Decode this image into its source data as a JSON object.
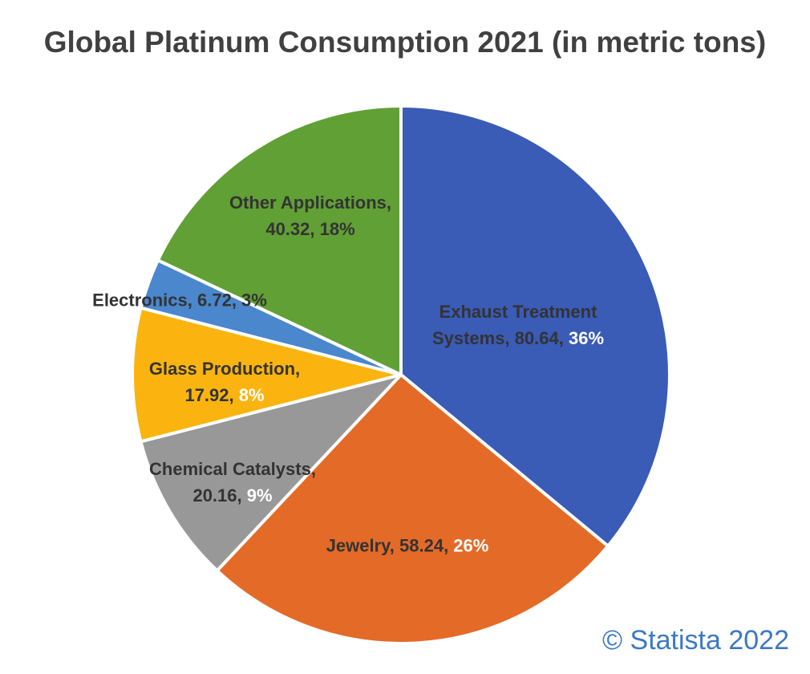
{
  "chart_data": {
    "type": "pie",
    "title": "Global Platinum Consumption 2021 (in metric tons)",
    "start_angle_deg": -90,
    "direction": "clockwise",
    "slices": [
      {
        "label": "Exhaust Treatment Systems",
        "value": 80.64,
        "value_text": "80.64",
        "percent": "36%",
        "color": "#3a5bb6",
        "percent_color": "#ffffff"
      },
      {
        "label": "Jewelry",
        "value": 58.24,
        "value_text": "58.24",
        "percent": "26%",
        "color": "#e46a27",
        "percent_color": "#ffffff"
      },
      {
        "label": "Chemical Catalysts",
        "value": 20.16,
        "value_text": "20.16",
        "percent": "9%",
        "color": "#989898",
        "percent_color": "#ffffff"
      },
      {
        "label": "Glass Production",
        "value": 17.92,
        "value_text": "17.92",
        "percent": "8%",
        "color": "#fbb40f",
        "percent_color": "#ffffff"
      },
      {
        "label": "Electronics",
        "value": 6.72,
        "value_text": "6.72",
        "percent": "3%",
        "color": "#4a87cd",
        "percent_color": "#333333"
      },
      {
        "label": "Other Applications",
        "value": 40.32,
        "value_text": "40.32",
        "percent": "18%",
        "color": "#61a035",
        "percent_color": "#333333"
      }
    ]
  },
  "credit": "© Statista 2022"
}
